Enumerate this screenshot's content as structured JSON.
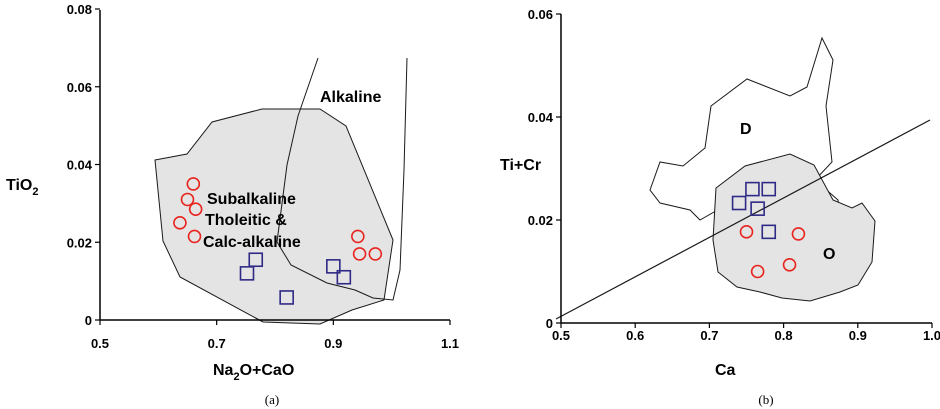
{
  "chart_data": [
    {
      "type": "scatter",
      "panel_label": "(a)",
      "xlabel_parts": [
        "Na",
        "2",
        "O+CaO"
      ],
      "ylabel_parts": [
        "TiO",
        "2"
      ],
      "xlim": [
        0.5,
        1.1
      ],
      "ylim": [
        0,
        0.08
      ],
      "xticks": [
        {
          "value": 0.5,
          "label": "0.5"
        },
        {
          "value": 0.7,
          "label": "0.7"
        },
        {
          "value": 0.9,
          "label": "0.9"
        },
        {
          "value": 1.1,
          "label": "1.1"
        }
      ],
      "yticks": [
        {
          "value": 0,
          "label": "0"
        },
        {
          "value": 0.02,
          "label": "0.02"
        },
        {
          "value": 0.04,
          "label": "0.04"
        },
        {
          "value": 0.06,
          "label": "0.06"
        },
        {
          "value": 0.08,
          "label": "0.08"
        }
      ],
      "field_labels": [
        "Alkaline",
        "Subalkaline",
        "Tholeitic &",
        "Calc-alkaline"
      ],
      "series": [
        {
          "marker": "circle",
          "color": "#e8251f",
          "x": [
            0.66,
            0.65,
            0.664,
            0.637,
            0.662,
            0.942,
            0.945,
            0.972
          ],
          "y": [
            0.035,
            0.031,
            0.0285,
            0.025,
            0.0215,
            0.0215,
            0.017,
            0.017
          ]
        },
        {
          "marker": "square",
          "color": "#2e2a85",
          "x": [
            0.767,
            0.752,
            0.82,
            0.9,
            0.918
          ],
          "y": [
            0.0155,
            0.012,
            0.0058,
            0.0138,
            0.011
          ]
        }
      ]
    },
    {
      "type": "scatter",
      "panel_label": "(b)",
      "xlabel": "Ca",
      "ylabel": "Ti+Cr",
      "xlim": [
        0.5,
        1.0
      ],
      "ylim": [
        0,
        0.06
      ],
      "xticks": [
        {
          "value": 0.5,
          "label": "0.5"
        },
        {
          "value": 0.6,
          "label": "0.6"
        },
        {
          "value": 0.7,
          "label": "0.7"
        },
        {
          "value": 0.8,
          "label": "0.8"
        },
        {
          "value": 0.9,
          "label": "0.9"
        },
        {
          "value": 1.0,
          "label": "1.0"
        }
      ],
      "yticks": [
        {
          "value": 0,
          "label": "0"
        },
        {
          "value": 0.02,
          "label": "0.02"
        },
        {
          "value": 0.04,
          "label": "0.04"
        },
        {
          "value": 0.06,
          "label": "0.06"
        }
      ],
      "field_labels": [
        "D",
        "O"
      ],
      "series": [
        {
          "marker": "circle",
          "color": "#e8251f",
          "x": [
            0.75,
            0.82,
            0.808,
            0.765
          ],
          "y": [
            0.0177,
            0.0173,
            0.0113,
            0.01
          ]
        },
        {
          "marker": "square",
          "color": "#2e2a85",
          "x": [
            0.758,
            0.78,
            0.74,
            0.765,
            0.78
          ],
          "y": [
            0.026,
            0.026,
            0.0233,
            0.0222,
            0.0177
          ]
        }
      ]
    }
  ]
}
